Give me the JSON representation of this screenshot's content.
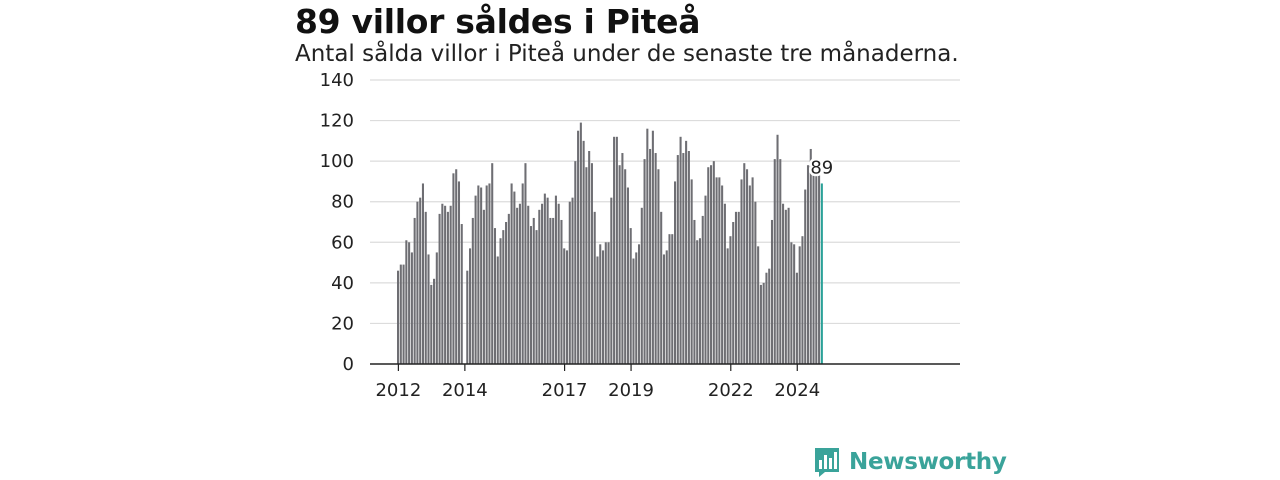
{
  "header": {
    "title": "89 villor såldes i Piteå",
    "subtitle": "Antal sålda villor i Piteå under de senaste tre månaderna."
  },
  "brand": {
    "name": "Newsworthy",
    "icon": "newsworthy-logo-icon",
    "color": "#3aa39a"
  },
  "colors": {
    "bar": "#6e6e73",
    "highlight": "#2aa198",
    "grid": "#dcdcdc",
    "axis": "#222222"
  },
  "chart_data": {
    "type": "bar",
    "title": "89 villor såldes i Piteå",
    "subtitle": "Antal sålda villor i Piteå under de senaste tre månaderna.",
    "xlabel": "",
    "ylabel": "",
    "ylim": [
      0,
      140
    ],
    "yticks": [
      0,
      20,
      40,
      60,
      80,
      100,
      120,
      140
    ],
    "x_tick_labels": [
      "2012",
      "2014",
      "2017",
      "2019",
      "2022",
      "2024"
    ],
    "start": "2012-01",
    "frequency": "monthly",
    "grid": true,
    "values": [
      46,
      49,
      49,
      61,
      60,
      55,
      72,
      80,
      82,
      89,
      75,
      54,
      39,
      42,
      55,
      74,
      79,
      78,
      75,
      78,
      94,
      96,
      90,
      69,
      null,
      46,
      57,
      72,
      83,
      88,
      87,
      76,
      88,
      89,
      99,
      67,
      53,
      62,
      66,
      70,
      74,
      89,
      85,
      77,
      79,
      89,
      99,
      78,
      68,
      72,
      66,
      76,
      79,
      84,
      82,
      72,
      72,
      83,
      79,
      71,
      57,
      56,
      80,
      82,
      100,
      115,
      119,
      110,
      97,
      105,
      99,
      75,
      53,
      59,
      56,
      60,
      60,
      82,
      112,
      112,
      98,
      104,
      96,
      87,
      67,
      52,
      55,
      59,
      77,
      101,
      116,
      106,
      115,
      104,
      96,
      75,
      54,
      56,
      64,
      64,
      90,
      103,
      112,
      104,
      110,
      105,
      91,
      71,
      61,
      62,
      73,
      83,
      97,
      98,
      100,
      92,
      92,
      88,
      79,
      57,
      63,
      70,
      75,
      75,
      91,
      99,
      96,
      88,
      92,
      80,
      58,
      39,
      40,
      45,
      47,
      71,
      101,
      113,
      101,
      79,
      76,
      77,
      60,
      59,
      45,
      58,
      63,
      86,
      98,
      106,
      98,
      96,
      93,
      89
    ],
    "highlight": {
      "label": "89",
      "value": 89
    }
  }
}
